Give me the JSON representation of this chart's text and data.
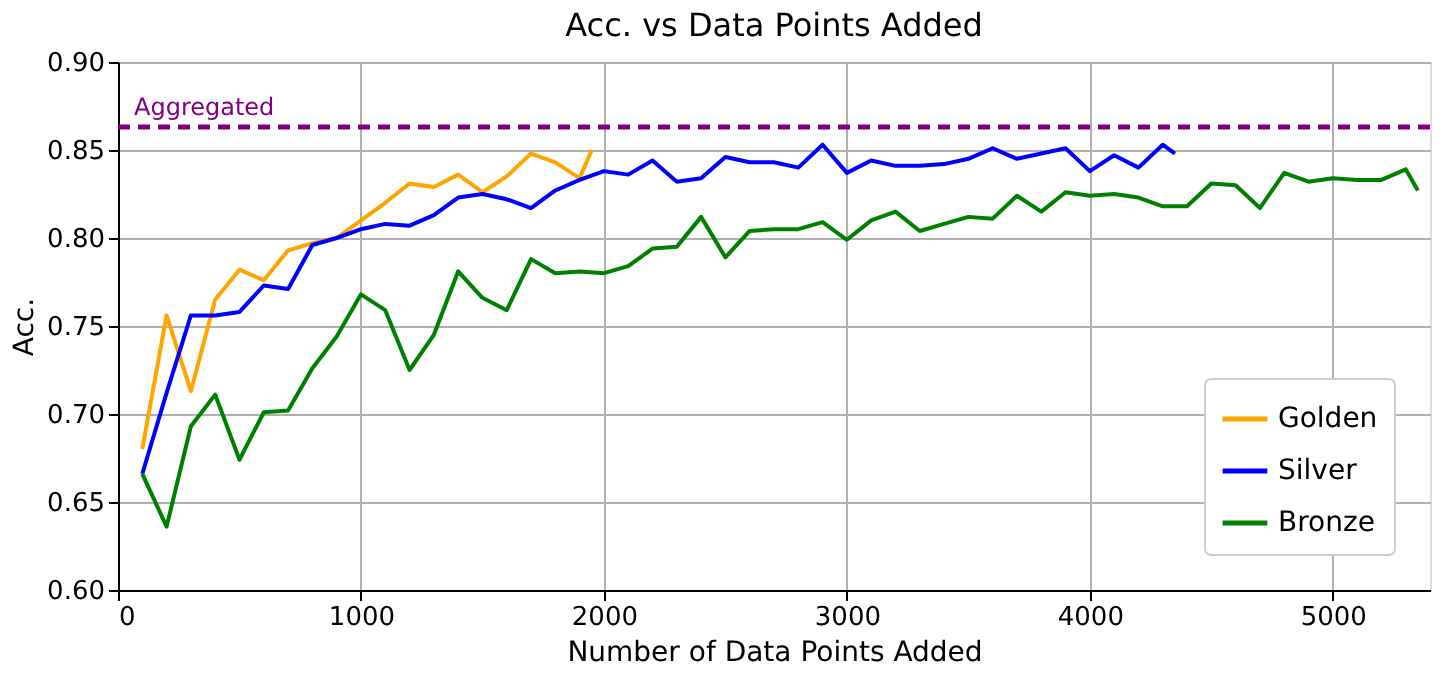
{
  "chart_data": {
    "type": "line",
    "title": "Acc. vs Data Points Added",
    "xlabel": "Number of Data Points Added",
    "ylabel": "Acc.",
    "xlim": [
      0,
      5400
    ],
    "xticks": [
      0,
      1000,
      2000,
      3000,
      4000,
      5000
    ],
    "ylim": [
      0.6,
      0.9
    ],
    "yticks": [
      {
        "value": 0.6,
        "label": "0.60"
      },
      0.65,
      {
        "value": 0.7,
        "label": "0.70"
      },
      0.75,
      {
        "value": 0.8,
        "label": "0.80"
      },
      0.85,
      {
        "value": 0.9,
        "label": "0.90"
      }
    ],
    "grid": true,
    "legend": "bottom right",
    "line_style": "solid",
    "marker": "none",
    "ref_lines": [
      {
        "axis": "y",
        "value": 0.863,
        "label": "Aggregated",
        "color": "#800080",
        "line_style": "dashed"
      }
    ],
    "series": [
      {
        "name": "Golden",
        "color": "#ffa500",
        "x": [
          100,
          200,
          300,
          400,
          500,
          600,
          700,
          800,
          900,
          1000,
          1100,
          1200,
          1300,
          1400,
          1500,
          1600,
          1700,
          1800,
          1900,
          1950
        ],
        "values": [
          0.68,
          0.756,
          0.713,
          0.765,
          0.782,
          0.776,
          0.793,
          0.797,
          0.8,
          0.81,
          0.82,
          0.831,
          0.829,
          0.836,
          0.826,
          0.835,
          0.848,
          0.843,
          0.834,
          0.85
        ]
      },
      {
        "name": "Silver",
        "color": "#0000ff",
        "x": [
          100,
          200,
          300,
          400,
          500,
          600,
          700,
          800,
          900,
          1000,
          1100,
          1200,
          1300,
          1400,
          1500,
          1600,
          1700,
          1800,
          1900,
          2000,
          2100,
          2200,
          2300,
          2400,
          2500,
          2600,
          2700,
          2800,
          2900,
          3000,
          3100,
          3200,
          3300,
          3400,
          3500,
          3600,
          3700,
          3800,
          3900,
          4000,
          4100,
          4200,
          4300,
          4350
        ],
        "values": [
          0.666,
          0.712,
          0.756,
          0.756,
          0.758,
          0.773,
          0.771,
          0.796,
          0.8,
          0.805,
          0.808,
          0.807,
          0.813,
          0.823,
          0.825,
          0.822,
          0.817,
          0.827,
          0.833,
          0.838,
          0.836,
          0.844,
          0.832,
          0.834,
          0.846,
          0.843,
          0.843,
          0.84,
          0.853,
          0.837,
          0.844,
          0.841,
          0.841,
          0.842,
          0.845,
          0.851,
          0.845,
          0.848,
          0.851,
          0.838,
          0.847,
          0.84,
          0.853,
          0.848
        ]
      },
      {
        "name": "Bronze",
        "color": "#008000",
        "x": [
          100,
          200,
          300,
          400,
          500,
          600,
          700,
          800,
          900,
          1000,
          1100,
          1200,
          1300,
          1400,
          1500,
          1600,
          1700,
          1800,
          1900,
          2000,
          2100,
          2200,
          2300,
          2400,
          2500,
          2600,
          2700,
          2800,
          2900,
          3000,
          3100,
          3200,
          3300,
          3400,
          3500,
          3600,
          3700,
          3800,
          3900,
          4000,
          4100,
          4200,
          4300,
          4400,
          4500,
          4600,
          4700,
          4800,
          4900,
          5000,
          5100,
          5200,
          5300,
          5350
        ],
        "values": [
          0.666,
          0.636,
          0.693,
          0.711,
          0.674,
          0.701,
          0.702,
          0.726,
          0.744,
          0.768,
          0.759,
          0.725,
          0.745,
          0.781,
          0.766,
          0.759,
          0.788,
          0.78,
          0.781,
          0.78,
          0.784,
          0.794,
          0.795,
          0.812,
          0.789,
          0.804,
          0.805,
          0.805,
          0.809,
          0.799,
          0.81,
          0.815,
          0.804,
          0.808,
          0.812,
          0.811,
          0.824,
          0.815,
          0.826,
          0.824,
          0.825,
          0.823,
          0.818,
          0.818,
          0.831,
          0.83,
          0.817,
          0.837,
          0.832,
          0.834,
          0.833,
          0.833,
          0.839,
          0.827
        ]
      }
    ]
  }
}
